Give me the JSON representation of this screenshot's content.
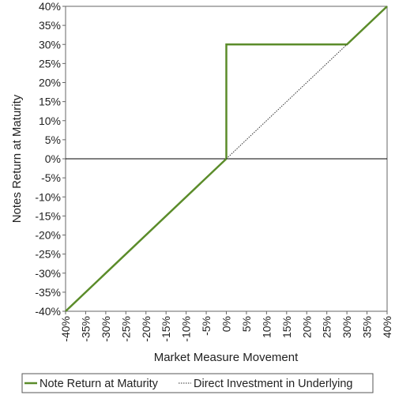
{
  "chart_data": {
    "type": "line",
    "title": "",
    "xlabel": "Market Measure Movement",
    "ylabel": "Notes Return at Maturity",
    "xlim": [
      -40,
      40
    ],
    "ylim": [
      -40,
      40
    ],
    "x_ticks": [
      -40,
      -35,
      -30,
      -25,
      -20,
      -15,
      -10,
      -5,
      0,
      5,
      10,
      15,
      20,
      25,
      30,
      35,
      40
    ],
    "y_ticks": [
      -40,
      -35,
      -30,
      -25,
      -20,
      -15,
      -10,
      -5,
      0,
      5,
      10,
      15,
      20,
      25,
      30,
      35,
      40
    ],
    "tick_format": "percent",
    "grid": false,
    "zero_line": true,
    "legend_position": "bottom",
    "series": [
      {
        "name": "Note Return at Maturity",
        "style": "solid",
        "color": "#5b8c2a",
        "points": [
          [
            -40,
            -40
          ],
          [
            0,
            0
          ],
          [
            0,
            30
          ],
          [
            30,
            30
          ],
          [
            40,
            40
          ]
        ]
      },
      {
        "name": "Direct Investment in Underlying",
        "style": "dotted",
        "color": "#333333",
        "points": [
          [
            0,
            0
          ],
          [
            30,
            30
          ]
        ]
      }
    ]
  }
}
